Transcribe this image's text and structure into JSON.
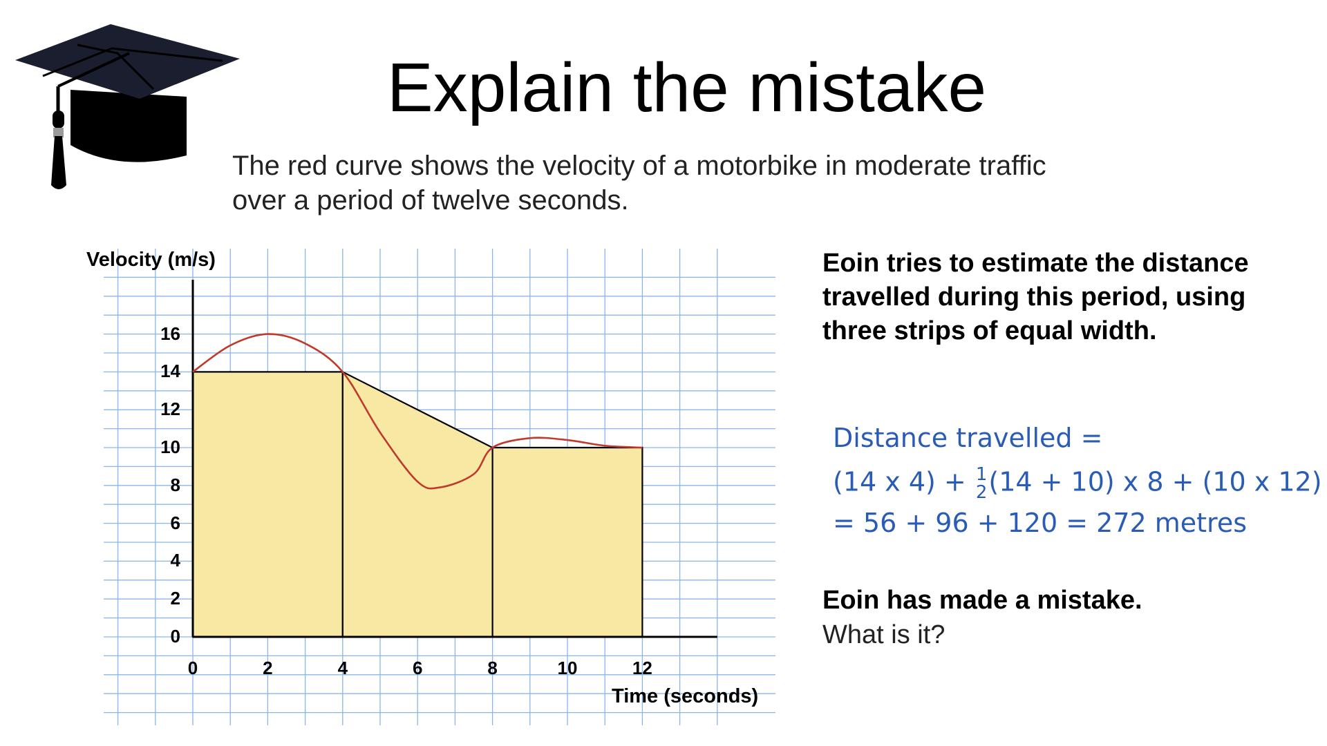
{
  "slide": {
    "title": "Explain the mistake",
    "intro_line1": "The red curve shows the velocity of a motorbike in moderate traffic",
    "intro_line2": "over a period of twelve seconds.",
    "eoin_text": "Eoin tries to estimate the distance travelled during this period, using three strips of equal width.",
    "working": {
      "line1": "Distance travelled =",
      "line2_a": "(14 x 4) + ",
      "frac_num": "1",
      "frac_den": "2",
      "line2_b": "(14 + 10) x 8 + (10 x 12)",
      "line3": "= 56 + 96 + 120 = 272 metres"
    },
    "mistake": "Eoin has made a mistake.",
    "question": "What is it?"
  },
  "chart_data": {
    "type": "area",
    "ylabel": "Velocity (m/s)",
    "xlabel": "Time (seconds)",
    "xlim": [
      0,
      14
    ],
    "ylim": [
      0,
      16
    ],
    "x_ticks": [
      "0",
      "2",
      "4",
      "6",
      "8",
      "10",
      "12"
    ],
    "y_ticks": [
      "0",
      "2",
      "4",
      "6",
      "8",
      "10",
      "12",
      "14",
      "16"
    ],
    "grid": true,
    "curve": {
      "color": "#c0392b",
      "points": [
        [
          0,
          14
        ],
        [
          1,
          15.4
        ],
        [
          2,
          16
        ],
        [
          3,
          15.5
        ],
        [
          4,
          14
        ],
        [
          5,
          10.8
        ],
        [
          6,
          8.2
        ],
        [
          6.6,
          7.9
        ],
        [
          7.5,
          8.6
        ],
        [
          8,
          10
        ],
        [
          9,
          10.5
        ],
        [
          10,
          10.4
        ],
        [
          11,
          10.1
        ],
        [
          12,
          10
        ]
      ]
    },
    "strips": [
      {
        "x0": 0,
        "x1": 4,
        "y0": 14,
        "y1": 14
      },
      {
        "x0": 4,
        "x1": 8,
        "y0": 14,
        "y1": 10
      },
      {
        "x0": 8,
        "x1": 12,
        "y0": 10,
        "y1": 10
      }
    ],
    "strip_fill": "#f7e8a4"
  },
  "colors": {
    "grid": "#8ab4f0",
    "handwriting": "#2a5bb5",
    "cap": "#0c1020"
  }
}
